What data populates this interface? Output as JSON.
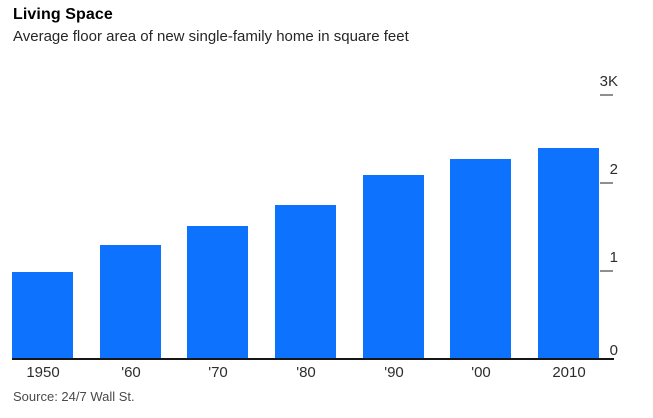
{
  "header": {
    "title": "Living Space",
    "subtitle": "Average floor area of new single-family home in square feet"
  },
  "source": "Source: 24/7 Wall St.",
  "colors": {
    "bar": "#0d73ff",
    "axis_line": "#161616",
    "tick_dash": "#8f8f8f",
    "tick_label": "#2d2d2d"
  },
  "chart_data": {
    "type": "bar",
    "title": "Living Space",
    "subtitle": "Average floor area of new single-family home in square feet",
    "categories": [
      "1950",
      "'60",
      "'70",
      "'80",
      "'90",
      "'00",
      "2010"
    ],
    "values": [
      983,
      1289,
      1500,
      1740,
      2080,
      2266,
      2392
    ],
    "xlabel": "",
    "ylabel": "square feet",
    "ylim": [
      0,
      3000
    ],
    "yticks": [
      {
        "value": 0,
        "label": "0"
      },
      {
        "value": 1000,
        "label": "1"
      },
      {
        "value": 2000,
        "label": "2"
      },
      {
        "value": 3000,
        "label": "3K"
      }
    ],
    "grid": false,
    "legend": false,
    "bar_color": "#0d73ff",
    "source": "Source: 24/7 Wall St."
  }
}
